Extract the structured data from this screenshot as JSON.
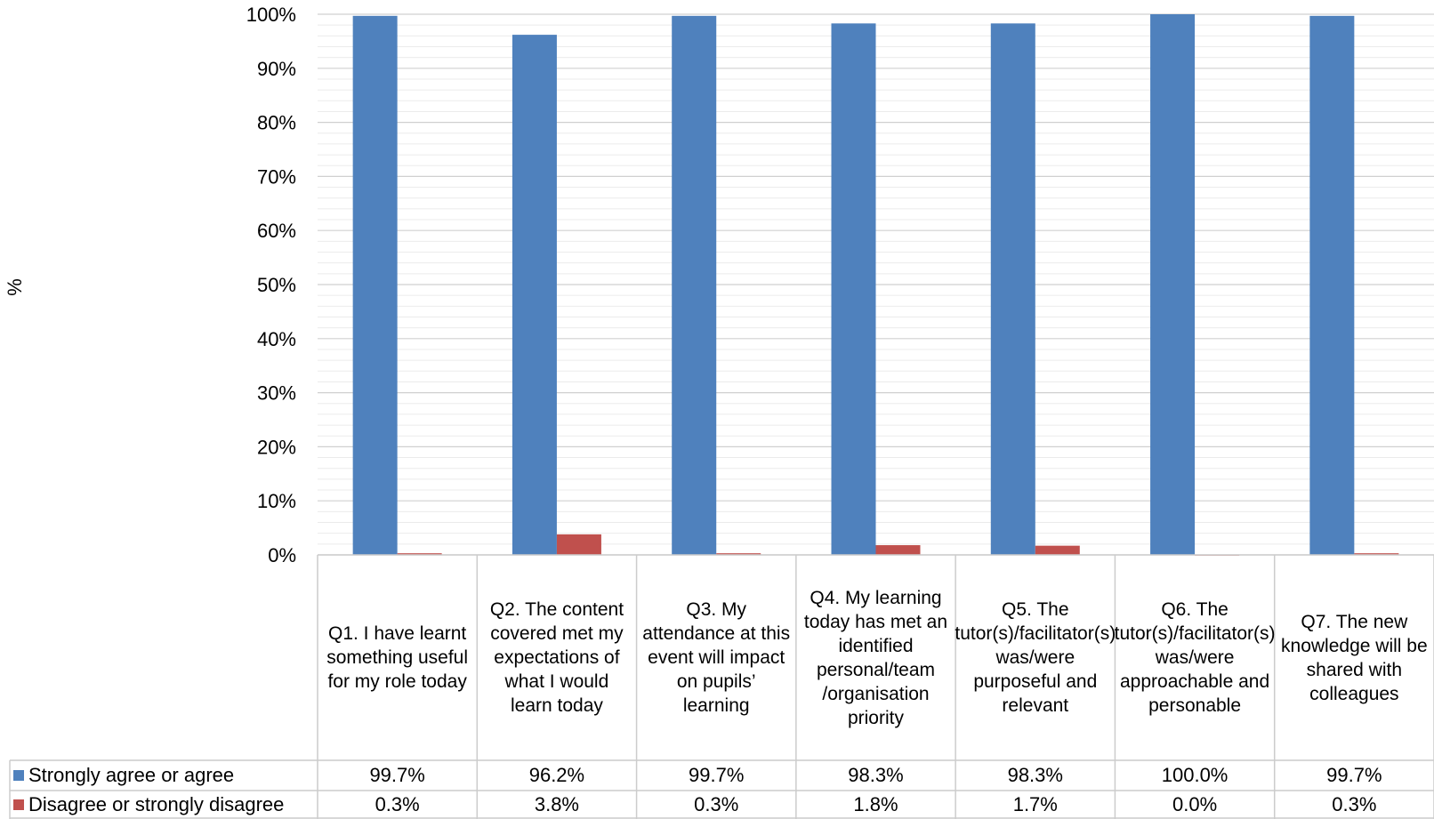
{
  "chart_data": {
    "type": "bar",
    "ylabel": "%",
    "ylim": [
      0,
      100
    ],
    "yticks": [
      "0%",
      "10%",
      "20%",
      "30%",
      "40%",
      "50%",
      "60%",
      "70%",
      "80%",
      "90%",
      "100%"
    ],
    "grid": true,
    "legend_placement": "data-table",
    "categories": [
      "Q1. I have learnt something useful for my role today",
      "Q2. The content covered met my expectations of what I would learn today",
      "Q3. My attendance at this event will impact on pupils’ learning",
      "Q4. My learning today has met an identified personal/team /organisation priority",
      "Q5. The tutor(s)/facilitator(s) was/were purposeful and relevant",
      "Q6. The tutor(s)/facilitator(s) was/were approachable and personable",
      "Q7. The new knowledge will be shared with colleagues"
    ],
    "series": [
      {
        "name": "Strongly agree or agree",
        "color": "#4f81bd",
        "values": [
          99.7,
          96.2,
          99.7,
          98.3,
          98.3,
          100.0,
          99.7
        ],
        "labels": [
          "99.7%",
          "96.2%",
          "99.7%",
          "98.3%",
          "98.3%",
          "100.0%",
          "99.7%"
        ]
      },
      {
        "name": "Disagree or strongly disagree",
        "color": "#c0504d",
        "values": [
          0.3,
          3.8,
          0.3,
          1.8,
          1.7,
          0.0,
          0.3
        ],
        "labels": [
          "0.3%",
          "3.8%",
          "0.3%",
          "1.8%",
          "1.7%",
          "0.0%",
          "0.3%"
        ]
      }
    ]
  }
}
